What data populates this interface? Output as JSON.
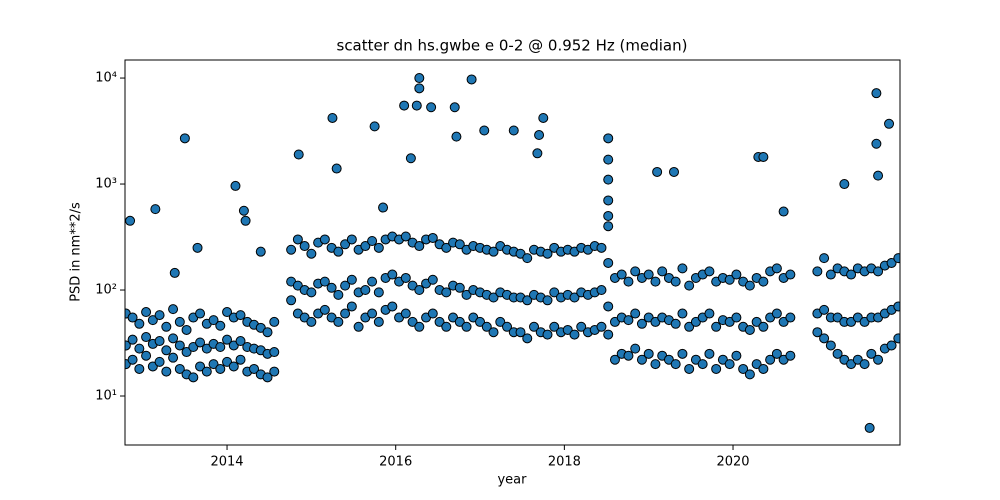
{
  "chart_data": {
    "type": "scatter",
    "title": "scatter dn hs.gwbe e 0-2 @ 0.952 Hz (median)",
    "xlabel": "year",
    "ylabel": "PSD in nm**2/s",
    "color": "#1f77b4",
    "edgecolor": "#000000",
    "yscale": "log",
    "xlim": [
      2012.79,
      2021.98
    ],
    "ylim": [
      3.45,
      14800
    ],
    "xticks": [
      2014,
      2016,
      2018,
      2020
    ],
    "yticks": [
      {
        "value": 10,
        "label": "10¹"
      },
      {
        "value": 100,
        "label": "10²"
      },
      {
        "value": 1000,
        "label": "10³"
      },
      {
        "value": 10000,
        "label": "10⁴"
      }
    ],
    "x": [
      2012.8,
      2012.8,
      2012.8,
      2012.88,
      2012.88,
      2012.88,
      2012.96,
      2012.96,
      2012.96,
      2013.04,
      2013.04,
      2013.04,
      2013.12,
      2013.12,
      2013.12,
      2013.2,
      2013.2,
      2013.2,
      2013.28,
      2013.28,
      2013.28,
      2013.36,
      2013.36,
      2013.36,
      2013.44,
      2013.44,
      2013.44,
      2013.52,
      2013.52,
      2013.52,
      2013.6,
      2013.6,
      2013.6,
      2013.68,
      2013.68,
      2013.68,
      2013.76,
      2013.76,
      2013.76,
      2013.84,
      2013.84,
      2013.84,
      2013.92,
      2013.92,
      2013.92,
      2014.0,
      2014.0,
      2014.0,
      2014.08,
      2014.08,
      2014.08,
      2014.16,
      2014.16,
      2014.16,
      2014.24,
      2014.24,
      2014.24,
      2014.32,
      2014.32,
      2014.32,
      2014.4,
      2014.4,
      2014.4,
      2014.48,
      2014.48,
      2014.48,
      2014.56,
      2014.56,
      2014.56,
      2014.76,
      2014.76,
      2014.76,
      2014.84,
      2014.84,
      2014.84,
      2014.92,
      2014.92,
      2014.92,
      2015.0,
      2015.0,
      2015.0,
      2015.08,
      2015.08,
      2015.08,
      2015.16,
      2015.16,
      2015.16,
      2015.24,
      2015.24,
      2015.24,
      2015.32,
      2015.32,
      2015.32,
      2015.4,
      2015.4,
      2015.4,
      2015.48,
      2015.48,
      2015.48,
      2015.56,
      2015.56,
      2015.56,
      2015.64,
      2015.64,
      2015.64,
      2015.72,
      2015.72,
      2015.72,
      2015.8,
      2015.8,
      2015.8,
      2015.88,
      2015.88,
      2015.88,
      2015.96,
      2015.96,
      2015.96,
      2016.04,
      2016.04,
      2016.04,
      2016.12,
      2016.12,
      2016.12,
      2016.2,
      2016.2,
      2016.2,
      2016.28,
      2016.28,
      2016.28,
      2016.36,
      2016.36,
      2016.36,
      2016.44,
      2016.44,
      2016.44,
      2016.52,
      2016.52,
      2016.52,
      2016.6,
      2016.6,
      2016.6,
      2016.68,
      2016.68,
      2016.68,
      2016.76,
      2016.76,
      2016.76,
      2016.84,
      2016.84,
      2016.84,
      2016.92,
      2016.92,
      2016.92,
      2017.0,
      2017.0,
      2017.0,
      2017.08,
      2017.08,
      2017.08,
      2017.16,
      2017.16,
      2017.16,
      2017.24,
      2017.24,
      2017.24,
      2017.32,
      2017.32,
      2017.32,
      2017.4,
      2017.4,
      2017.4,
      2017.48,
      2017.48,
      2017.48,
      2017.56,
      2017.56,
      2017.56,
      2017.64,
      2017.64,
      2017.64,
      2017.72,
      2017.72,
      2017.72,
      2017.8,
      2017.8,
      2017.8,
      2017.88,
      2017.88,
      2017.88,
      2017.96,
      2017.96,
      2017.96,
      2018.04,
      2018.04,
      2018.04,
      2018.12,
      2018.12,
      2018.12,
      2018.2,
      2018.2,
      2018.2,
      2018.28,
      2018.28,
      2018.28,
      2018.36,
      2018.36,
      2018.36,
      2018.44,
      2018.44,
      2018.44,
      2018.52,
      2018.52,
      2018.52,
      2018.6,
      2018.6,
      2018.6,
      2018.68,
      2018.68,
      2018.68,
      2018.76,
      2018.76,
      2018.76,
      2018.84,
      2018.84,
      2018.84,
      2018.92,
      2018.92,
      2018.92,
      2019.0,
      2019.0,
      2019.0,
      2019.08,
      2019.08,
      2019.08,
      2019.16,
      2019.16,
      2019.16,
      2019.24,
      2019.24,
      2019.24,
      2019.32,
      2019.32,
      2019.32,
      2019.4,
      2019.4,
      2019.4,
      2019.48,
      2019.48,
      2019.48,
      2019.56,
      2019.56,
      2019.56,
      2019.64,
      2019.64,
      2019.64,
      2019.72,
      2019.72,
      2019.72,
      2019.8,
      2019.8,
      2019.8,
      2019.88,
      2019.88,
      2019.88,
      2019.96,
      2019.96,
      2019.96,
      2020.04,
      2020.04,
      2020.04,
      2020.12,
      2020.12,
      2020.12,
      2020.2,
      2020.2,
      2020.2,
      2020.28,
      2020.28,
      2020.28,
      2020.36,
      2020.36,
      2020.36,
      2020.44,
      2020.44,
      2020.44,
      2020.52,
      2020.52,
      2020.52,
      2020.6,
      2020.6,
      2020.6,
      2020.68,
      2020.68,
      2020.68,
      2021.0,
      2021.0,
      2021.0,
      2021.08,
      2021.08,
      2021.08,
      2021.16,
      2021.16,
      2021.16,
      2021.24,
      2021.24,
      2021.24,
      2021.32,
      2021.32,
      2021.32,
      2021.4,
      2021.4,
      2021.4,
      2021.48,
      2021.48,
      2021.48,
      2021.56,
      2021.56,
      2021.56,
      2021.64,
      2021.64,
      2021.64,
      2021.72,
      2021.72,
      2021.72,
      2021.8,
      2021.8,
      2021.8,
      2021.88,
      2021.88,
      2021.88,
      2021.96,
      2021.96,
      2021.96,
      2012.85,
      2013.15,
      2013.38,
      2013.5,
      2013.65,
      2014.1,
      2014.2,
      2014.22,
      2014.4,
      2014.85,
      2015.25,
      2015.3,
      2015.75,
      2015.85,
      2016.1,
      2016.18,
      2016.28,
      2016.28,
      2016.25,
      2016.42,
      2016.7,
      2016.9,
      2016.72,
      2017.05,
      2017.4,
      2017.75,
      2017.7,
      2017.68,
      2018.52,
      2018.52,
      2018.52,
      2018.52,
      2018.52,
      2018.52,
      2019.1,
      2019.3,
      2020.3,
      2020.36,
      2020.6,
      2021.32,
      2021.7,
      2021.85,
      2021.7,
      2021.72,
      2021.62
    ],
    "y": [
      20,
      30,
      60,
      22,
      34,
      55,
      18,
      28,
      48,
      24,
      36,
      62,
      19,
      31,
      52,
      21,
      33,
      58,
      17,
      27,
      45,
      23,
      35,
      66,
      18,
      30,
      50,
      16,
      26,
      42,
      15,
      29,
      55,
      19,
      32,
      60,
      17,
      28,
      48,
      20,
      31,
      52,
      18,
      29,
      46,
      21,
      34,
      62,
      19,
      30,
      55,
      22,
      33,
      58,
      17,
      29,
      50,
      18,
      28,
      47,
      16,
      27,
      44,
      15,
      25,
      40,
      17,
      26,
      50,
      80,
      120,
      240,
      60,
      110,
      300,
      55,
      100,
      260,
      50,
      95,
      220,
      60,
      115,
      280,
      65,
      120,
      300,
      55,
      105,
      250,
      50,
      90,
      230,
      60,
      110,
      270,
      70,
      125,
      300,
      45,
      95,
      240,
      55,
      100,
      260,
      60,
      120,
      290,
      50,
      95,
      250,
      65,
      130,
      300,
      70,
      140,
      320,
      55,
      120,
      300,
      60,
      130,
      320,
      50,
      110,
      280,
      45,
      100,
      260,
      55,
      115,
      300,
      60,
      125,
      310,
      50,
      100,
      270,
      45,
      95,
      250,
      55,
      110,
      280,
      50,
      105,
      270,
      45,
      90,
      240,
      55,
      100,
      260,
      50,
      95,
      250,
      45,
      90,
      240,
      40,
      85,
      230,
      50,
      95,
      260,
      45,
      90,
      240,
      40,
      85,
      230,
      40,
      85,
      220,
      35,
      80,
      200,
      45,
      90,
      240,
      40,
      85,
      230,
      38,
      80,
      220,
      45,
      95,
      250,
      40,
      85,
      230,
      42,
      90,
      240,
      38,
      85,
      230,
      45,
      95,
      250,
      40,
      90,
      240,
      42,
      95,
      260,
      45,
      100,
      250,
      38,
      70,
      180,
      22,
      50,
      130,
      25,
      55,
      140,
      24,
      52,
      120,
      28,
      60,
      150,
      22,
      48,
      130,
      25,
      55,
      140,
      20,
      50,
      120,
      24,
      55,
      150,
      22,
      52,
      130,
      20,
      48,
      120,
      25,
      60,
      160,
      18,
      45,
      110,
      22,
      50,
      130,
      20,
      55,
      140,
      25,
      60,
      150,
      18,
      45,
      120,
      22,
      52,
      130,
      20,
      50,
      125,
      24,
      55,
      140,
      18,
      45,
      120,
      16,
      42,
      110,
      20,
      50,
      130,
      18,
      45,
      120,
      22,
      55,
      150,
      25,
      60,
      160,
      22,
      50,
      130,
      24,
      55,
      140,
      40,
      60,
      150,
      35,
      65,
      200,
      30,
      55,
      140,
      25,
      55,
      160,
      22,
      50,
      150,
      20,
      50,
      140,
      22,
      55,
      160,
      20,
      50,
      150,
      25,
      55,
      160,
      22,
      55,
      150,
      28,
      60,
      170,
      30,
      65,
      180,
      35,
      70,
      200,
      450,
      580,
      145,
      2700,
      250,
      960,
      560,
      450,
      230,
      1900,
      4200,
      1400,
      3500,
      600,
      5500,
      1750,
      10000,
      8000,
      5500,
      5300,
      5300,
      9700,
      2800,
      3200,
      3200,
      4200,
      2900,
      1950,
      2700,
      1700,
      1100,
      700,
      500,
      400,
      1300,
      1300,
      1800,
      1800,
      550,
      1000,
      7200,
      3700,
      2400,
      1200,
      5
    ]
  }
}
